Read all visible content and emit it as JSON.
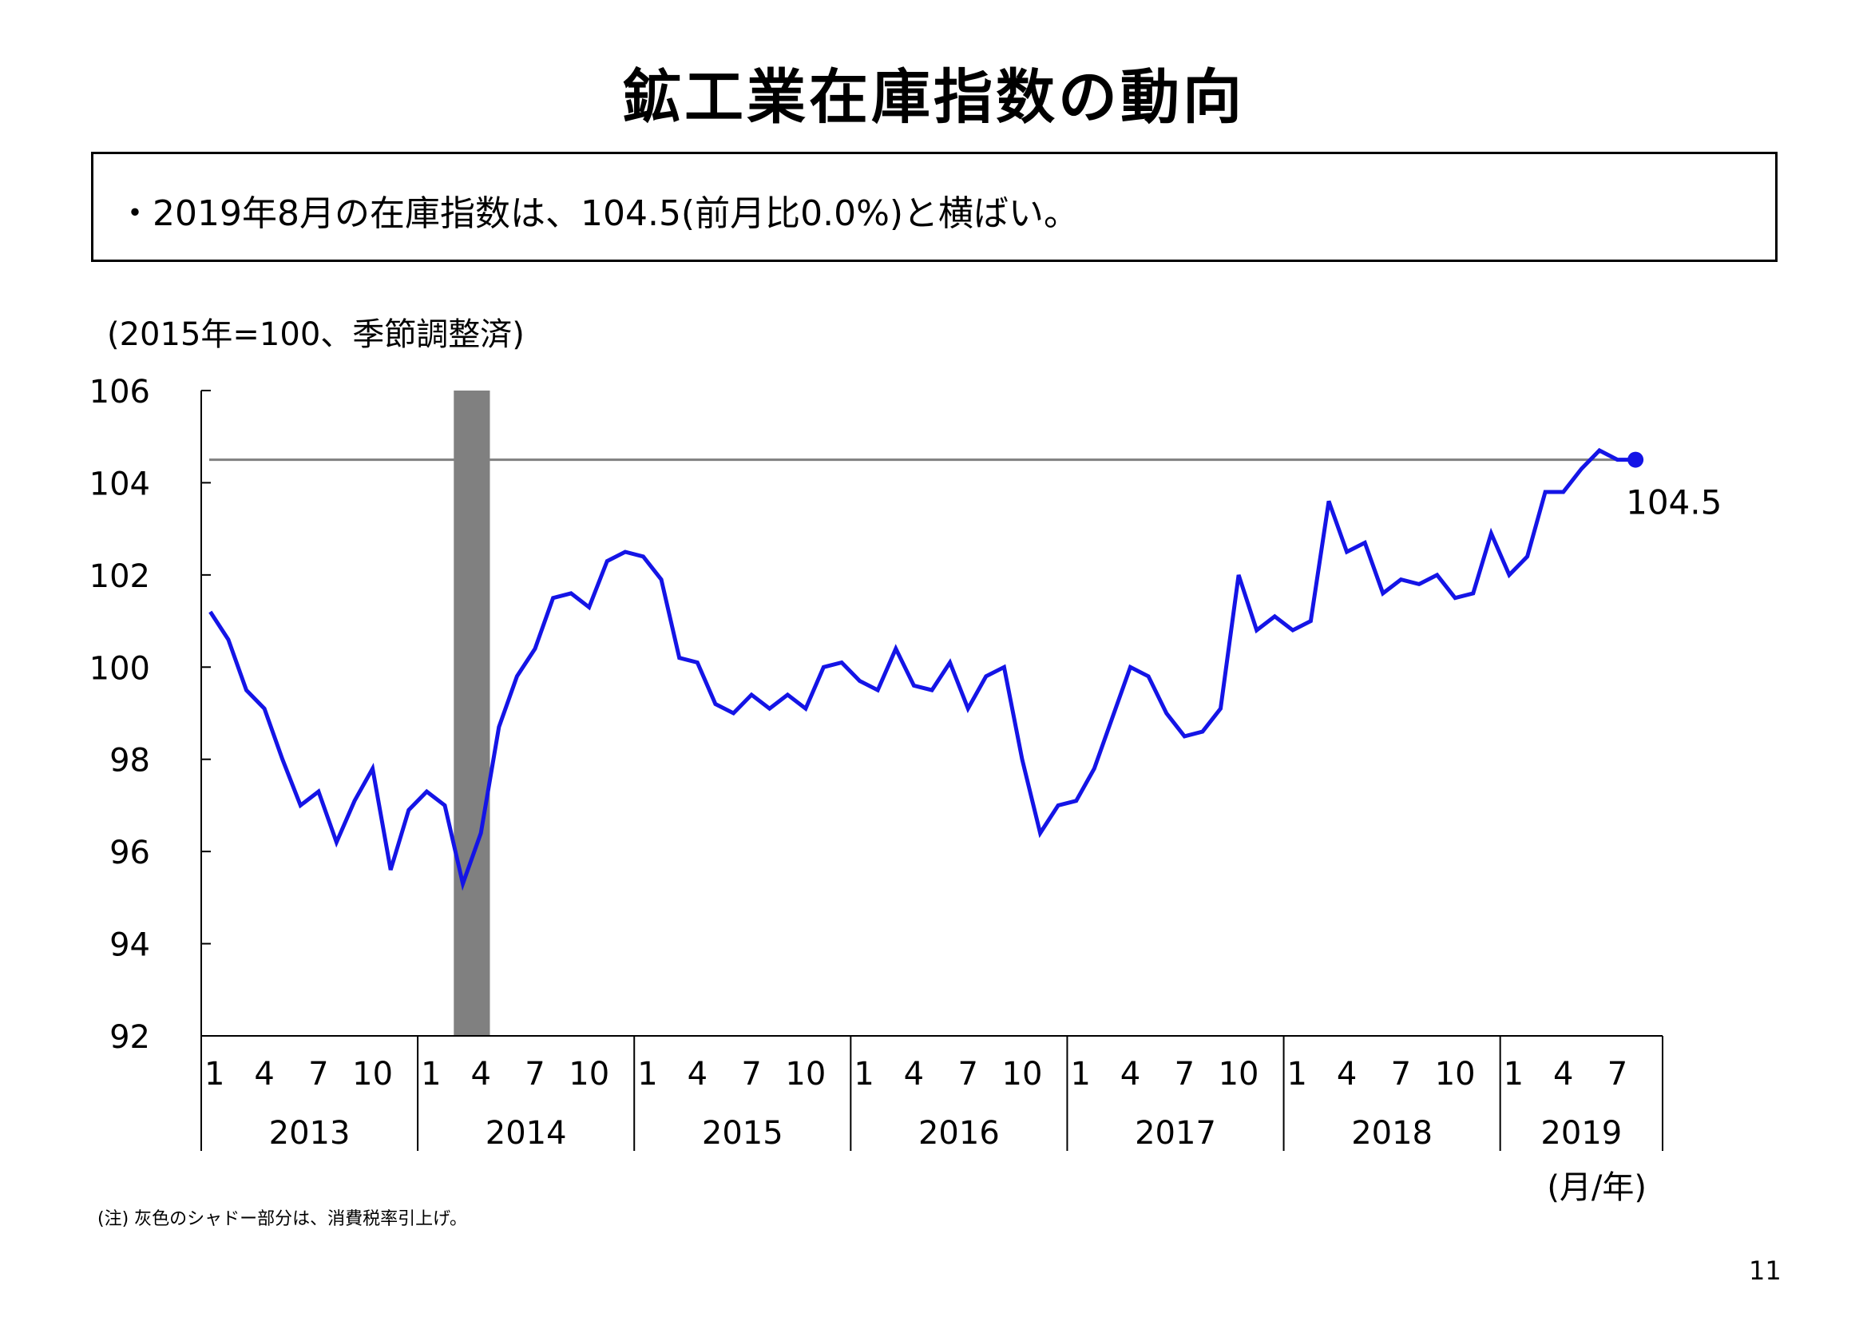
{
  "title": "鉱工業在庫指数の動向",
  "summary": "・2019年8月の在庫指数は、104.5(前月比0.0%)と横ばい。",
  "unit_note": "(2015年=100、季節調整済)",
  "footnote": "(注) 灰色のシャドー部分は、消費税率引上げ。",
  "page_number": "11",
  "colors": {
    "line": "#1414e6",
    "reference_line": "#808080",
    "shade": "#808080",
    "axis": "#000000"
  },
  "chart_data": {
    "type": "line",
    "ylim": [
      92,
      106
    ],
    "yticks": [
      92,
      94,
      96,
      98,
      100,
      102,
      104,
      106
    ],
    "xlabel": "(月/年)",
    "ylabel": "",
    "grid": false,
    "month_tick_labels": [
      "1",
      "4",
      "7",
      "10"
    ],
    "years": [
      "2013",
      "2014",
      "2015",
      "2016",
      "2017",
      "2018",
      "2019"
    ],
    "shade": {
      "from": "2014-03",
      "to": "2014-04"
    },
    "reference_line": 104.5,
    "last_point_label": "104.5",
    "series": [
      {
        "start": "2013-01",
        "values": [
          101.2,
          100.6,
          99.5,
          99.1,
          98.0,
          97.0,
          97.3,
          96.2,
          97.1,
          97.8,
          95.6,
          96.9,
          97.3,
          97.0,
          95.3,
          96.4,
          98.7,
          99.8,
          100.4,
          101.5,
          101.6,
          101.3,
          102.3,
          102.5,
          102.4,
          101.9,
          100.2,
          100.1,
          99.2,
          99.0,
          99.4,
          99.1,
          99.4,
          99.1,
          100.0,
          100.1,
          99.7,
          99.5,
          100.4,
          99.6,
          99.5,
          100.1,
          99.1,
          99.8,
          100.0,
          98.0,
          96.4,
          97.0,
          97.1,
          97.8,
          98.9,
          100.0,
          99.8,
          99.0,
          98.5,
          98.6,
          99.1,
          102.0,
          100.8,
          101.1,
          100.8,
          101.0,
          103.6,
          102.5,
          102.7,
          101.6,
          101.9,
          101.8,
          102.0,
          101.5,
          101.6,
          102.9,
          102.0,
          102.4,
          103.8,
          103.8,
          104.3,
          104.7,
          104.5,
          104.5
        ]
      }
    ]
  }
}
